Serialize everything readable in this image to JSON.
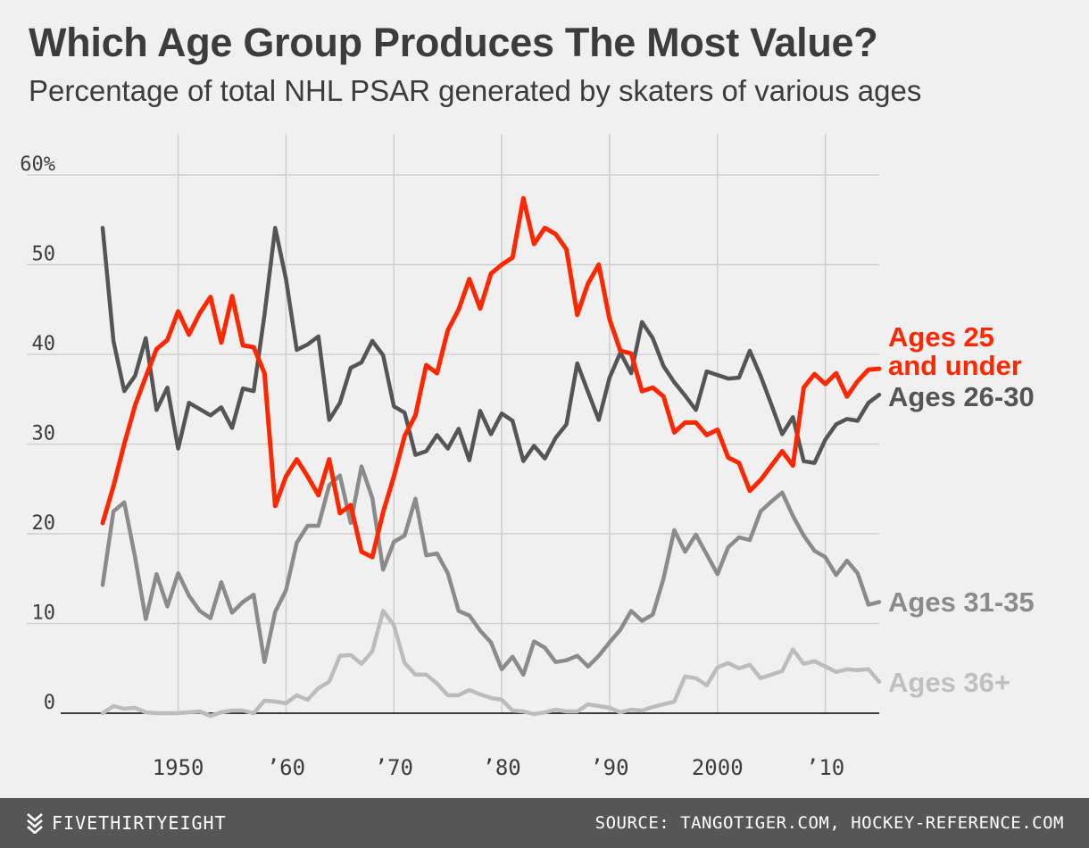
{
  "header": {
    "title": "Which Age Group Produces The Most Value?",
    "subtitle": "Percentage of total NHL PSAR generated by skaters of various ages"
  },
  "footer": {
    "brand": "FIVETHIRTYEIGHT",
    "source": "SOURCE: TANGOTIGER.COM, HOCKEY-REFERENCE.COM"
  },
  "colors": {
    "background": "#f0f0f0",
    "grid": "#cfcfcf",
    "baseline": "#222222",
    "axis_text": "#3c3c3c",
    "footer_bg": "#565656"
  },
  "chart_data": {
    "type": "line",
    "title": "Which Age Group Produces The Most Value?",
    "subtitle": "Percentage of total NHL PSAR generated by skaters of various ages",
    "xlabel": "",
    "ylabel": "",
    "xlim": [
      1943,
      2015
    ],
    "ylim": [
      0,
      60
    ],
    "grid": true,
    "legend": "direct labels at right end of lines",
    "x_ticks": [
      {
        "value": 1950,
        "label": "1950"
      },
      {
        "value": 1960,
        "label": "’60"
      },
      {
        "value": 1970,
        "label": "’70"
      },
      {
        "value": 1980,
        "label": "’80"
      },
      {
        "value": 1990,
        "label": "’90"
      },
      {
        "value": 2000,
        "label": "2000"
      },
      {
        "value": 2010,
        "label": "’10"
      }
    ],
    "y_ticks": [
      {
        "value": 0,
        "label": "0"
      },
      {
        "value": 10,
        "label": "10"
      },
      {
        "value": 20,
        "label": "20"
      },
      {
        "value": 30,
        "label": "30"
      },
      {
        "value": 40,
        "label": "40"
      },
      {
        "value": 50,
        "label": "50"
      },
      {
        "value": 60,
        "label": "60%"
      }
    ],
    "x": [
      1943,
      1944,
      1945,
      1946,
      1947,
      1948,
      1949,
      1950,
      1951,
      1952,
      1953,
      1954,
      1955,
      1956,
      1957,
      1958,
      1959,
      1960,
      1961,
      1962,
      1963,
      1964,
      1965,
      1966,
      1967,
      1968,
      1969,
      1970,
      1971,
      1972,
      1973,
      1974,
      1975,
      1976,
      1977,
      1978,
      1979,
      1980,
      1981,
      1982,
      1983,
      1984,
      1985,
      1986,
      1987,
      1988,
      1989,
      1990,
      1991,
      1992,
      1993,
      1994,
      1995,
      1996,
      1997,
      1998,
      1999,
      2000,
      2001,
      2002,
      2003,
      2004,
      2005,
      2006,
      2007,
      2008,
      2009,
      2010,
      2011,
      2012,
      2013,
      2014,
      2015
    ],
    "series": [
      {
        "name": "Ages 25 and under",
        "label_lines": [
          "Ages 25",
          "and under"
        ],
        "color": "#ff2700",
        "label_color": "#ff2700",
        "values": [
          21.2,
          25.3,
          30.0,
          34.3,
          37.5,
          40.6,
          41.6,
          44.8,
          42.2,
          44.6,
          46.4,
          41.3,
          46.5,
          41.0,
          40.8,
          37.9,
          23.1,
          26.4,
          28.3,
          26.4,
          24.3,
          28.3,
          22.3,
          23.2,
          18.0,
          17.4,
          22.4,
          26.4,
          30.9,
          33.2,
          38.8,
          37.9,
          42.7,
          45.0,
          48.4,
          45.1,
          49.0,
          50.0,
          50.8,
          57.4,
          52.3,
          54.1,
          53.4,
          51.7,
          44.4,
          47.9,
          50.0,
          43.9,
          40.4,
          40.1,
          35.9,
          36.3,
          35.3,
          31.3,
          32.4,
          32.4,
          31.0,
          31.6,
          28.5,
          27.9,
          24.8,
          26.0,
          27.6,
          29.2,
          27.6,
          36.3,
          37.8,
          36.7,
          37.9,
          35.3,
          37.0,
          38.3,
          38.4
        ]
      },
      {
        "name": "Ages 26-30",
        "label_lines": [
          "Ages 26-30"
        ],
        "color": "#555555",
        "label_color": "#555555",
        "values": [
          54.1,
          41.5,
          35.9,
          37.6,
          41.8,
          33.8,
          36.3,
          29.5,
          34.6,
          33.9,
          33.2,
          34.1,
          31.8,
          36.2,
          35.9,
          44.4,
          54.1,
          48.4,
          40.5,
          41.1,
          42.0,
          32.7,
          34.6,
          38.5,
          39.1,
          41.5,
          39.9,
          34.2,
          33.5,
          28.8,
          29.2,
          31.0,
          29.5,
          31.7,
          28.2,
          33.7,
          31.1,
          33.4,
          32.6,
          28.1,
          29.8,
          28.4,
          30.7,
          32.2,
          39.0,
          35.8,
          32.7,
          37.4,
          40.2,
          37.9,
          43.6,
          41.8,
          38.7,
          36.9,
          35.4,
          33.8,
          38.1,
          37.7,
          37.3,
          37.4,
          40.4,
          37.6,
          34.4,
          31.1,
          33.0,
          28.1,
          27.9,
          30.5,
          32.2,
          32.8,
          32.6,
          34.6,
          35.5
        ]
      },
      {
        "name": "Ages 31-35",
        "label_lines": [
          "Ages 31-35"
        ],
        "color": "#8b8b8b",
        "label_color": "#8b8b8b",
        "values": [
          14.3,
          22.5,
          23.5,
          17.4,
          10.5,
          15.5,
          11.9,
          15.6,
          13.1,
          11.4,
          10.6,
          14.6,
          11.2,
          12.4,
          13.2,
          5.7,
          11.3,
          13.7,
          19.0,
          20.9,
          20.9,
          25.4,
          26.5,
          21.2,
          27.5,
          24.0,
          16.0,
          19.1,
          19.8,
          23.9,
          17.6,
          17.8,
          15.6,
          11.4,
          10.9,
          9.2,
          7.9,
          4.9,
          6.3,
          4.3,
          8.0,
          7.3,
          5.7,
          5.9,
          6.4,
          5.2,
          6.4,
          7.9,
          9.3,
          11.4,
          10.3,
          11.0,
          15.0,
          20.4,
          18.0,
          19.9,
          17.7,
          15.5,
          18.5,
          19.6,
          19.3,
          22.5,
          23.6,
          24.6,
          22.0,
          19.8,
          18.1,
          17.4,
          15.4,
          17.0,
          15.6,
          12.1,
          12.4
        ]
      },
      {
        "name": "Ages 36+",
        "label_lines": [
          "Ages 36+"
        ],
        "color": "#bcbcbc",
        "label_color": "#c0c0c0",
        "values": [
          0.0,
          0.8,
          0.5,
          0.6,
          0.1,
          0.0,
          0.0,
          0.0,
          0.1,
          0.2,
          -0.3,
          0.1,
          0.3,
          0.3,
          0.0,
          1.4,
          1.3,
          1.1,
          2.0,
          1.5,
          2.8,
          3.5,
          6.4,
          6.5,
          5.5,
          6.9,
          11.4,
          9.8,
          5.6,
          4.3,
          4.3,
          3.3,
          2.0,
          2.0,
          2.6,
          2.1,
          1.7,
          1.5,
          0.3,
          0.2,
          -0.1,
          0.1,
          0.4,
          0.2,
          0.2,
          1.0,
          0.8,
          0.6,
          0.1,
          0.4,
          0.3,
          0.7,
          1.0,
          1.3,
          4.1,
          3.9,
          3.1,
          5.1,
          5.6,
          5.0,
          5.4,
          3.9,
          4.3,
          4.7,
          7.1,
          5.5,
          5.8,
          5.2,
          4.6,
          4.9,
          4.8,
          4.9,
          3.5
        ]
      }
    ]
  }
}
